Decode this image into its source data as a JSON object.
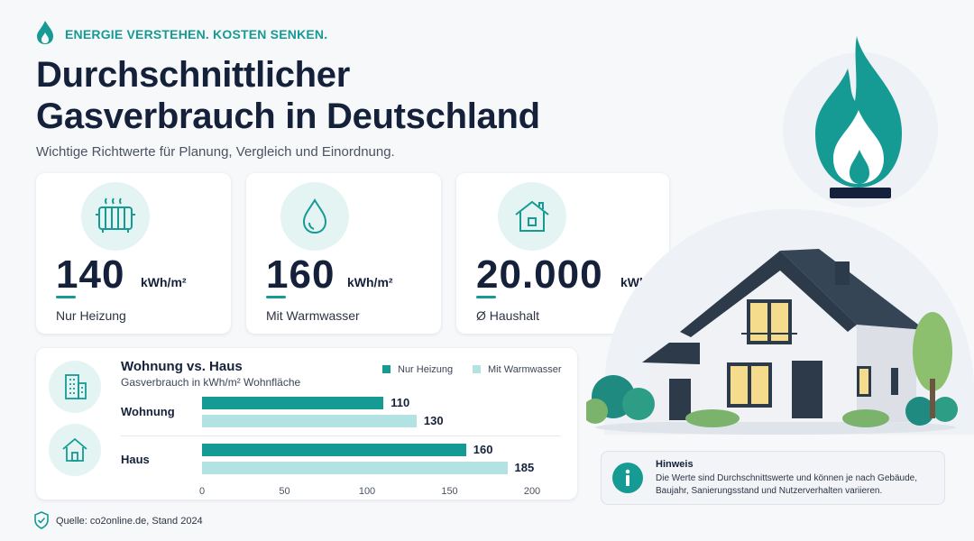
{
  "header": {
    "tagline": "ENERGIE VERSTEHEN. KOSTEN SENKEN.",
    "title_line1": "Durchschnittlicher",
    "title_line2": "Gasverbrauch in Deutschland",
    "subtitle": "Wichtige Richtwerte für Planung, Vergleich und Einordnung."
  },
  "stats": [
    {
      "value": "140",
      "unit": "kWh/m²",
      "label": "Nur Heizung",
      "icon": "radiator-icon"
    },
    {
      "value": "160",
      "unit": "kWh/m²",
      "label": "Mit Warmwasser",
      "icon": "water-drop-icon"
    },
    {
      "value": "20.000",
      "unit": "kWh",
      "label": "Ø Haushalt",
      "icon": "house-icon"
    }
  ],
  "chart_data": {
    "type": "bar",
    "orientation": "horizontal",
    "title": "Wohnung vs. Haus",
    "subtitle": "Gasverbrauch in kWh/m² Wohnfläche",
    "categories": [
      "Wohnung",
      "Haus"
    ],
    "series": [
      {
        "name": "Nur Heizung",
        "color": "#169a94",
        "values": [
          110,
          160
        ]
      },
      {
        "name": "Mit Warmwasser",
        "color": "#b2e3e2",
        "values": [
          130,
          185
        ]
      }
    ],
    "xlim": [
      0,
      200
    ],
    "xticks": [
      "0",
      "50",
      "100",
      "150",
      "200"
    ],
    "legend": "top-right",
    "grid": false
  },
  "note": {
    "title": "Hinweis",
    "text": "Die Werte sind Durchschnittswerte und können je nach Gebäude, Baujahr, Sanierungsstand und Nutzerverhalten variieren.",
    "icon": "info-icon"
  },
  "source": "Quelle: co2online.de, Stand 2024",
  "colors": {
    "accent": "#169a94",
    "accent_light": "#b2e3e2",
    "dark": "#15213a"
  }
}
